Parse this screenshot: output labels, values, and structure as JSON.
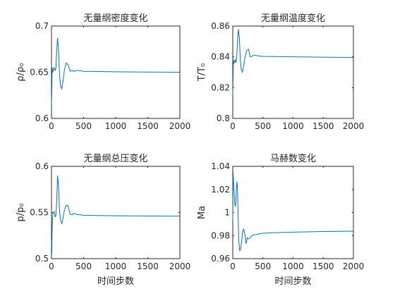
{
  "chart_data": [
    {
      "type": "line",
      "title": "无量纲密度变化",
      "xlabel": "",
      "ylabel": "ρ/ρ₀",
      "xlim": [
        0,
        2000
      ],
      "ylim": [
        0.6,
        0.7
      ],
      "xticks": [
        "0",
        "500",
        "1000",
        "1500",
        "2000"
      ],
      "yticks": [
        "0.6",
        "0.65",
        "0.7"
      ],
      "series": [
        {
          "color": "#0072bd",
          "x": [
            0,
            5,
            10,
            20,
            30,
            40,
            50,
            60,
            70,
            80,
            95,
            110,
            125,
            140,
            160,
            180,
            200,
            230,
            260,
            290,
            320,
            350,
            400,
            450,
            500,
            700,
            1000,
            1500,
            2000
          ],
          "y": [
            0.615,
            0.628,
            0.655,
            0.65,
            0.653,
            0.655,
            0.653,
            0.652,
            0.655,
            0.672,
            0.687,
            0.675,
            0.648,
            0.636,
            0.632,
            0.64,
            0.652,
            0.66,
            0.658,
            0.651,
            0.652,
            0.651,
            0.652,
            0.6515,
            0.651,
            0.6508,
            0.6505,
            0.6502,
            0.65
          ]
        }
      ]
    },
    {
      "type": "line",
      "title": "无量纲温度变化",
      "xlabel": "",
      "ylabel": "T/T₀",
      "xlim": [
        0,
        2000
      ],
      "ylim": [
        0.8,
        0.86
      ],
      "xticks": [
        "0",
        "500",
        "1000",
        "1500",
        "2000"
      ],
      "yticks": [
        "0.8",
        "0.82",
        "0.84",
        "0.86"
      ],
      "series": [
        {
          "color": "#0072bd",
          "x": [
            0,
            5,
            10,
            20,
            30,
            40,
            50,
            60,
            70,
            80,
            95,
            110,
            125,
            140,
            160,
            180,
            200,
            230,
            260,
            290,
            320,
            350,
            400,
            450,
            500,
            700,
            1000,
            1500,
            2000
          ],
          "y": [
            0.815,
            0.826,
            0.838,
            0.836,
            0.837,
            0.838,
            0.836,
            0.838,
            0.843,
            0.852,
            0.858,
            0.852,
            0.838,
            0.832,
            0.83,
            0.834,
            0.839,
            0.844,
            0.845,
            0.84,
            0.8405,
            0.841,
            0.8408,
            0.8405,
            0.8403,
            0.8402,
            0.84,
            0.8398,
            0.8396
          ]
        }
      ]
    },
    {
      "type": "line",
      "title": "无量纲总压变化",
      "xlabel": "时间步数",
      "ylabel": "p/p₀",
      "xlim": [
        0,
        2000
      ],
      "ylim": [
        0.5,
        0.6
      ],
      "xticks": [
        "0",
        "500",
        "1000",
        "1500",
        "2000"
      ],
      "yticks": [
        "0.5",
        "0.55",
        "0.6"
      ],
      "series": [
        {
          "color": "#0072bd",
          "x": [
            0,
            5,
            10,
            20,
            30,
            40,
            50,
            60,
            70,
            80,
            95,
            110,
            125,
            140,
            160,
            180,
            200,
            230,
            260,
            290,
            320,
            350,
            400,
            450,
            500,
            700,
            1000,
            1500,
            2000
          ],
          "y": [
            0.52,
            0.505,
            0.533,
            0.548,
            0.55,
            0.551,
            0.548,
            0.545,
            0.548,
            0.56,
            0.59,
            0.578,
            0.552,
            0.542,
            0.538,
            0.544,
            0.552,
            0.558,
            0.557,
            0.548,
            0.5475,
            0.549,
            0.5478,
            0.5475,
            0.547,
            0.5468,
            0.5465,
            0.5462,
            0.546
          ]
        }
      ]
    },
    {
      "type": "line",
      "title": "马赫数变化",
      "xlabel": "时间步数",
      "ylabel": "Ma",
      "xlim": [
        0,
        2000
      ],
      "ylim": [
        0.96,
        1.04
      ],
      "xticks": [
        "0",
        "500",
        "1000",
        "1500",
        "2000"
      ],
      "yticks": [
        "0.96",
        "0.98",
        "1",
        "1.02",
        "1.04"
      ],
      "series": [
        {
          "color": "#0072bd",
          "x": [
            0,
            5,
            10,
            20,
            30,
            40,
            50,
            60,
            70,
            80,
            90,
            100,
            115,
            130,
            145,
            160,
            180,
            200,
            220,
            240,
            260,
            290,
            320,
            350,
            400,
            450,
            500,
            700,
            1000,
            1500,
            2000
          ],
          "y": [
            0.993,
            1.035,
            1.03,
            1.02,
            1.01,
            1.005,
            1.008,
            1.02,
            1.027,
            1.018,
            0.995,
            0.975,
            0.967,
            0.968,
            0.974,
            0.982,
            0.986,
            0.981,
            0.973,
            0.978,
            0.977,
            0.978,
            0.98,
            0.9805,
            0.981,
            0.9815,
            0.982,
            0.9825,
            0.983,
            0.9835,
            0.9838
          ]
        }
      ]
    }
  ]
}
